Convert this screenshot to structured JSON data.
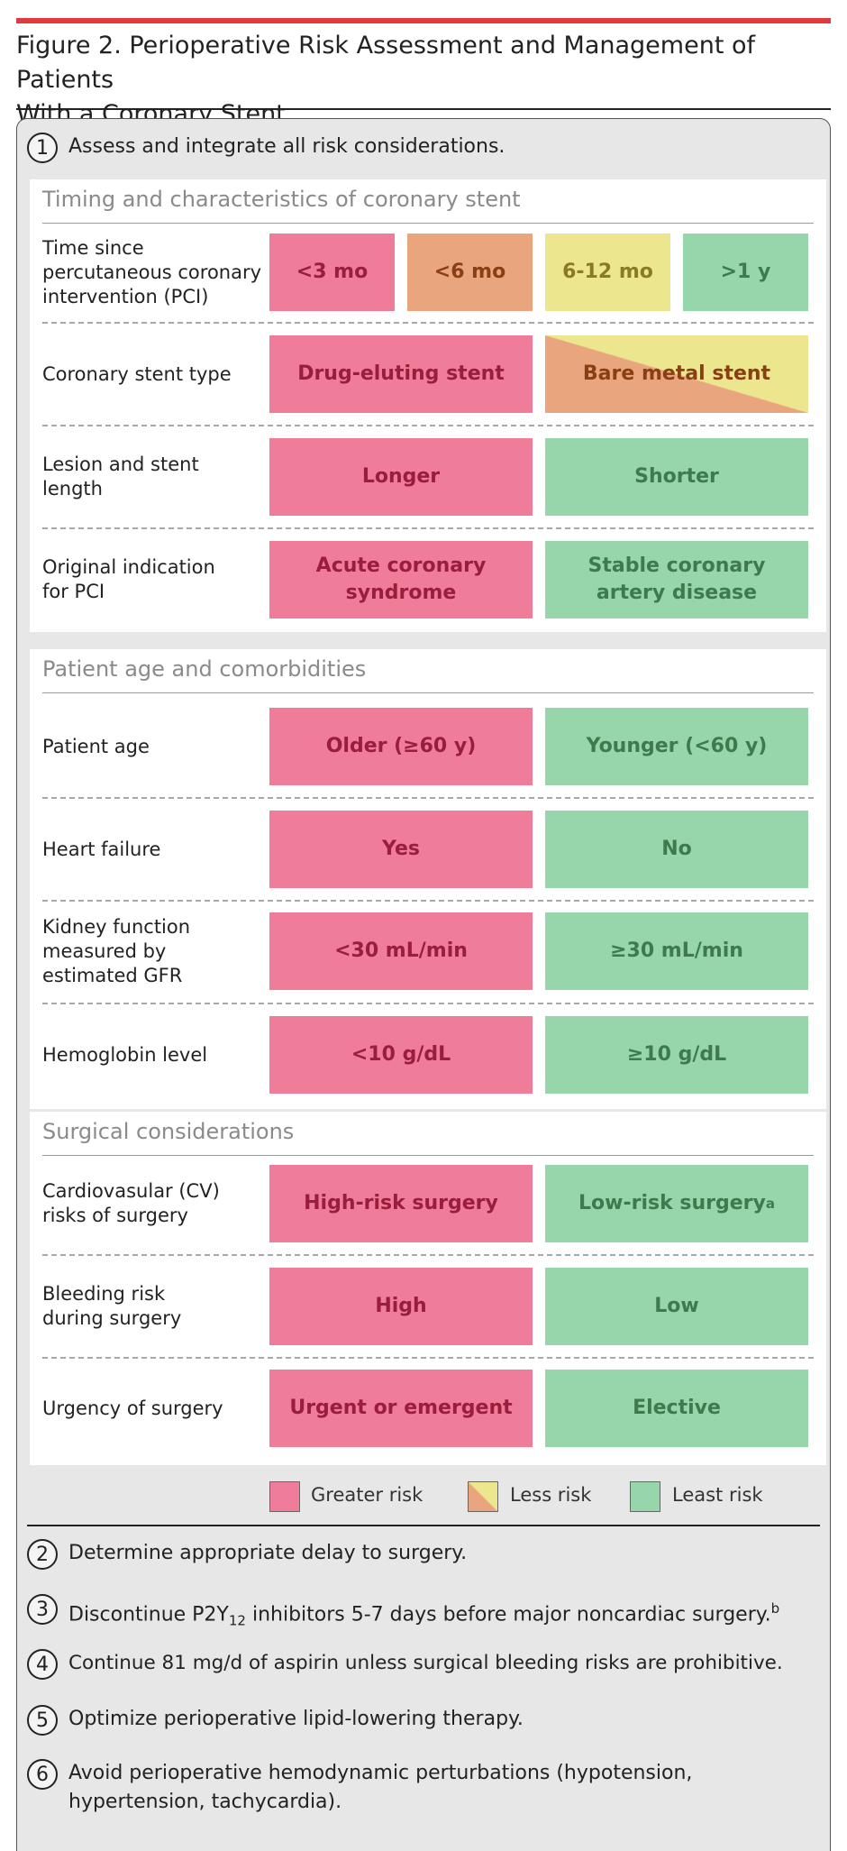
{
  "figure": {
    "title_line1": "Figure 2. Perioperative Risk Assessment and Management of Patients",
    "title_line2": "With a Coronary Stent"
  },
  "steps": [
    {
      "number": "1",
      "text": "Assess and integrate all risk considerations."
    },
    {
      "number": "2",
      "text": "Determine appropriate delay to surgery."
    },
    {
      "number": "3",
      "text_before": "Discontinue P2Y",
      "subscript": "12",
      "text_after": " inhibitors 5-7 days before major noncardiac surgery.",
      "superscript": "b"
    },
    {
      "number": "4",
      "text": "Continue 81 mg/d of aspirin unless surgical bleeding risks are prohibitive."
    },
    {
      "number": "5",
      "text": "Optimize perioperative lipid-lowering therapy."
    },
    {
      "number": "6",
      "text_line1": "Avoid perioperative hemodynamic perturbations (hypotension,",
      "text_line2": "hypertension, tachycardia)."
    }
  ],
  "sections": [
    {
      "title": "Timing and characteristics of coronary stent",
      "rows": [
        {
          "label": [
            "Time since",
            "percutaneous coronary",
            "intervention (PCI)"
          ],
          "cells": [
            {
              "text": "<3 mo",
              "risk": "greater"
            },
            {
              "text": "<6 mo",
              "risk": "less-orange"
            },
            {
              "text": "6-12 mo",
              "risk": "less-yellow"
            },
            {
              "text": ">1 y",
              "risk": "least"
            }
          ]
        },
        {
          "label": [
            "Coronary stent type"
          ],
          "cells": [
            {
              "text": "Drug-eluting stent",
              "risk": "greater"
            },
            {
              "text": "Bare metal stent",
              "risk": "less"
            }
          ]
        },
        {
          "label": [
            "Lesion and stent length"
          ],
          "cells": [
            {
              "text": "Longer",
              "risk": "greater"
            },
            {
              "text": "Shorter",
              "risk": "least"
            }
          ]
        },
        {
          "label": [
            "Original indication",
            "for PCI"
          ],
          "cells": [
            {
              "text": [
                "Acute coronary",
                "syndrome"
              ],
              "risk": "greater"
            },
            {
              "text": [
                "Stable coronary",
                "artery disease"
              ],
              "risk": "least"
            }
          ]
        }
      ]
    },
    {
      "title": "Patient age and comorbidities",
      "rows": [
        {
          "label": [
            "Patient age"
          ],
          "cells": [
            {
              "text": "Older (≥60 y)",
              "risk": "greater"
            },
            {
              "text": "Younger (<60 y)",
              "risk": "least"
            }
          ]
        },
        {
          "label": [
            "Heart failure"
          ],
          "cells": [
            {
              "text": "Yes",
              "risk": "greater"
            },
            {
              "text": "No",
              "risk": "least"
            }
          ]
        },
        {
          "label": [
            "Kidney function",
            "measured by",
            "estimated GFR"
          ],
          "cells": [
            {
              "text": "<30 mL/min",
              "risk": "greater"
            },
            {
              "text": "≥30 mL/min",
              "risk": "least"
            }
          ]
        },
        {
          "label": [
            "Hemoglobin level"
          ],
          "cells": [
            {
              "text": "<10 g/dL",
              "risk": "greater"
            },
            {
              "text": "≥10 g/dL",
              "risk": "least"
            }
          ]
        }
      ]
    },
    {
      "title": "Surgical considerations",
      "rows": [
        {
          "label": [
            "Cardiovasular (CV)",
            "risks of surgery"
          ],
          "cells": [
            {
              "text": "High-risk surgery",
              "risk": "greater"
            },
            {
              "text": "Low-risk surgery",
              "superscript": "a",
              "risk": "least"
            }
          ]
        },
        {
          "label": [
            "Bleeding risk",
            "during surgery"
          ],
          "cells": [
            {
              "text": "High",
              "risk": "greater"
            },
            {
              "text": "Low",
              "risk": "least"
            }
          ]
        },
        {
          "label": [
            "Urgency of surgery"
          ],
          "cells": [
            {
              "text": "Urgent or emergent",
              "risk": "greater"
            },
            {
              "text": "Elective",
              "risk": "least"
            }
          ]
        }
      ]
    }
  ],
  "legend": [
    {
      "text": "Greater risk",
      "color": "#ef7c99"
    },
    {
      "text": "Less risk",
      "color": "#e9a67e/#ece68e"
    },
    {
      "text": "Least risk",
      "color": "#97d5ab"
    }
  ],
  "colors": {
    "greater_risk": "#ef7c99",
    "less_risk_orange": "#e9a67e",
    "less_risk_yellow": "#ece68e",
    "least_risk": "#97d5ab",
    "accent_bar": "#e03a3e"
  }
}
